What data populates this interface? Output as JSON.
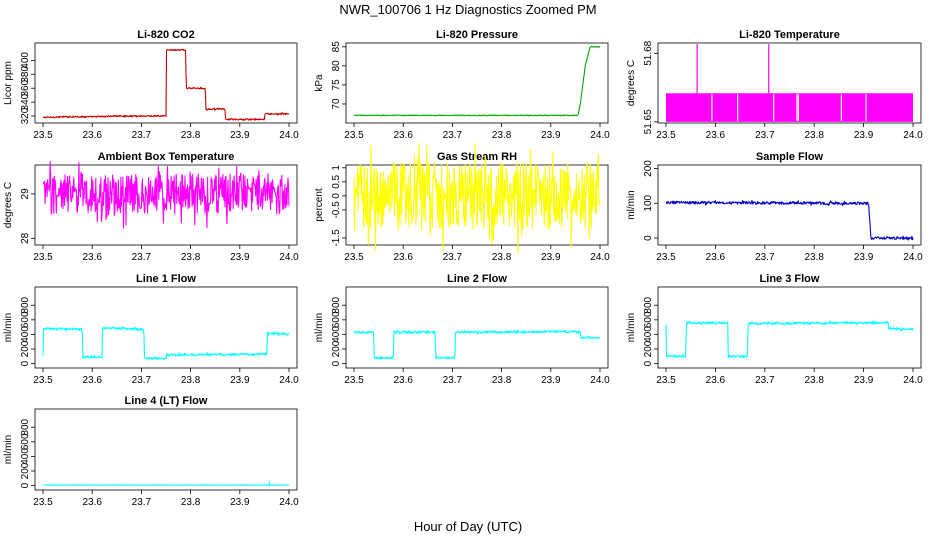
{
  "figure": {
    "title": "NWR_100706  1 Hz Diagnostics Zoomed PM",
    "xlabel": "Hour of Day (UTC)"
  },
  "chart_data": [
    {
      "type": "line",
      "title": "Li-820 CO2",
      "ylabel": "Licor ppm",
      "color": "#cc0000",
      "xlim": [
        23.5,
        24.0
      ],
      "ylim": [
        310,
        425
      ],
      "xticks": [
        "23.5",
        "23.6",
        "23.7",
        "23.8",
        "23.9",
        "24.0"
      ],
      "yticks": [
        320,
        340,
        360,
        380,
        400
      ],
      "noise": 1,
      "series": [
        {
          "x": [
            23.5,
            23.55,
            23.6,
            23.65,
            23.7,
            23.75,
            23.751,
            23.79,
            23.791,
            23.83,
            23.831,
            23.87,
            23.871,
            23.95,
            23.951,
            24.0
          ],
          "y": [
            318,
            319,
            319,
            320,
            320,
            320,
            415,
            415,
            360,
            360,
            330,
            330,
            315,
            315,
            323,
            323
          ]
        }
      ]
    },
    {
      "type": "line",
      "title": "Li-820 Pressure",
      "ylabel": "kPa",
      "color": "#00aa00",
      "xlim": [
        23.5,
        24.0
      ],
      "ylim": [
        65,
        86
      ],
      "xticks": [
        "23.5",
        "23.6",
        "23.7",
        "23.8",
        "23.9",
        "24.0"
      ],
      "yticks": [
        70,
        75,
        80,
        85
      ],
      "noise": 0.1,
      "series": [
        {
          "x": [
            23.5,
            23.92,
            23.955,
            23.96,
            23.97,
            23.98,
            24.0
          ],
          "y": [
            67,
            67,
            67,
            70,
            80,
            85,
            85
          ]
        }
      ]
    },
    {
      "type": "line",
      "title": "Li-820 Temperature",
      "ylabel": "degrees C",
      "color": "#ff00ff",
      "xlim": [
        23.5,
        24.0
      ],
      "ylim": [
        51.6495,
        51.6845
      ],
      "xticks": [
        "23.5",
        "23.6",
        "23.7",
        "23.8",
        "23.9",
        "24.0"
      ],
      "yticks": [
        51.65,
        51.68
      ],
      "band": [
        51.65,
        51.6625
      ],
      "spikes": [
        {
          "x": 23.563,
          "y": 51.684
        },
        {
          "x": 23.708,
          "y": 51.684
        }
      ],
      "gaps": [
        23.593,
        23.645,
        23.718,
        23.765,
        23.768,
        23.855,
        23.905
      ]
    },
    {
      "type": "line",
      "title": "Ambient Box Temperature",
      "ylabel": "degrees C",
      "color": "#ff00ff",
      "xlim": [
        23.5,
        24.0
      ],
      "ylim": [
        27.85,
        29.65
      ],
      "xticks": [
        "23.5",
        "23.6",
        "23.7",
        "23.8",
        "23.9",
        "24.0"
      ],
      "yticks": [
        28.0,
        29.0
      ],
      "noise": 0.45,
      "series": [
        {
          "x": [
            23.5,
            24.0
          ],
          "y": [
            29.0,
            29.0
          ]
        }
      ]
    },
    {
      "type": "line",
      "title": "Gas Stream RH",
      "ylabel": "percent",
      "color": "#ffff00",
      "xlim": [
        23.5,
        24.0
      ],
      "ylim": [
        -1.75,
        1.1
      ],
      "xticks": [
        "23.5",
        "23.6",
        "23.7",
        "23.8",
        "23.9",
        "24.0"
      ],
      "yticks": [
        -1.5,
        -0.5,
        0.0,
        0.5,
        1.0
      ],
      "noise": 1.2,
      "series": [
        {
          "x": [
            23.5,
            24.0
          ],
          "y": [
            0.0,
            0.0
          ]
        }
      ]
    },
    {
      "type": "line",
      "title": "Sample Flow",
      "ylabel": "ml/min",
      "color": "#0000cc",
      "xlim": [
        23.5,
        24.0
      ],
      "ylim": [
        -20,
        210
      ],
      "xticks": [
        "23.5",
        "23.6",
        "23.7",
        "23.8",
        "23.9",
        "24.0"
      ],
      "yticks": [
        0,
        100,
        200
      ],
      "noise": 4,
      "series": [
        {
          "x": [
            23.5,
            23.7,
            23.91,
            23.915,
            24.0
          ],
          "y": [
            102,
            101,
            100,
            0,
            0
          ]
        }
      ]
    },
    {
      "type": "line",
      "title": "Line 1 Flow",
      "ylabel": "ml/min",
      "color": "#00ffff",
      "xlim": [
        23.5,
        24.0
      ],
      "ylim": [
        -60,
        1050
      ],
      "xticks": [
        "23.5",
        "23.6",
        "23.7",
        "23.8",
        "23.9",
        "24.0"
      ],
      "yticks": [
        0,
        200,
        400,
        600,
        800
      ],
      "noise": 15,
      "series": [
        {
          "x": [
            23.5,
            23.501,
            23.58,
            23.581,
            23.62,
            23.621,
            23.705,
            23.706,
            23.75,
            23.751,
            23.955,
            23.956,
            24.0
          ],
          "y": [
            100,
            480,
            470,
            90,
            90,
            490,
            470,
            70,
            70,
            120,
            130,
            420,
            400
          ]
        }
      ]
    },
    {
      "type": "line",
      "title": "Line 2 Flow",
      "ylabel": "ml/min",
      "color": "#00ffff",
      "xlim": [
        23.5,
        24.0
      ],
      "ylim": [
        -60,
        1050
      ],
      "xticks": [
        "23.5",
        "23.6",
        "23.7",
        "23.8",
        "23.9",
        "24.0"
      ],
      "yticks": [
        0,
        200,
        400,
        600,
        800
      ],
      "noise": 15,
      "series": [
        {
          "x": [
            23.5,
            23.54,
            23.541,
            23.58,
            23.581,
            23.665,
            23.666,
            23.705,
            23.706,
            23.96,
            23.961,
            24.0
          ],
          "y": [
            430,
            430,
            80,
            80,
            430,
            430,
            80,
            80,
            430,
            440,
            360,
            350
          ]
        }
      ]
    },
    {
      "type": "line",
      "title": "Line 3 Flow",
      "ylabel": "ml/min",
      "color": "#00ffff",
      "xlim": [
        23.5,
        24.0
      ],
      "ylim": [
        -60,
        1050
      ],
      "xticks": [
        "23.5",
        "23.6",
        "23.7",
        "23.8",
        "23.9",
        "24.0"
      ],
      "yticks": [
        0,
        200,
        400,
        600,
        800
      ],
      "noise": 15,
      "series": [
        {
          "x": [
            23.5,
            23.501,
            23.54,
            23.541,
            23.625,
            23.626,
            23.665,
            23.666,
            23.95,
            23.951,
            24.0
          ],
          "y": [
            520,
            100,
            100,
            560,
            560,
            100,
            100,
            550,
            560,
            480,
            470
          ]
        }
      ]
    },
    {
      "type": "line",
      "title": "Line 4 (LT) Flow",
      "ylabel": "ml/min",
      "color": "#00ffff",
      "xlim": [
        23.5,
        24.0
      ],
      "ylim": [
        -60,
        1050
      ],
      "xticks": [
        "23.5",
        "23.6",
        "23.7",
        "23.8",
        "23.9",
        "24.0"
      ],
      "yticks": [
        0,
        200,
        400,
        600,
        800
      ],
      "noise": 3,
      "spikes": [
        {
          "x": 23.96,
          "y": 60
        }
      ],
      "series": [
        {
          "x": [
            23.5,
            24.0
          ],
          "y": [
            8,
            8
          ]
        }
      ]
    }
  ]
}
